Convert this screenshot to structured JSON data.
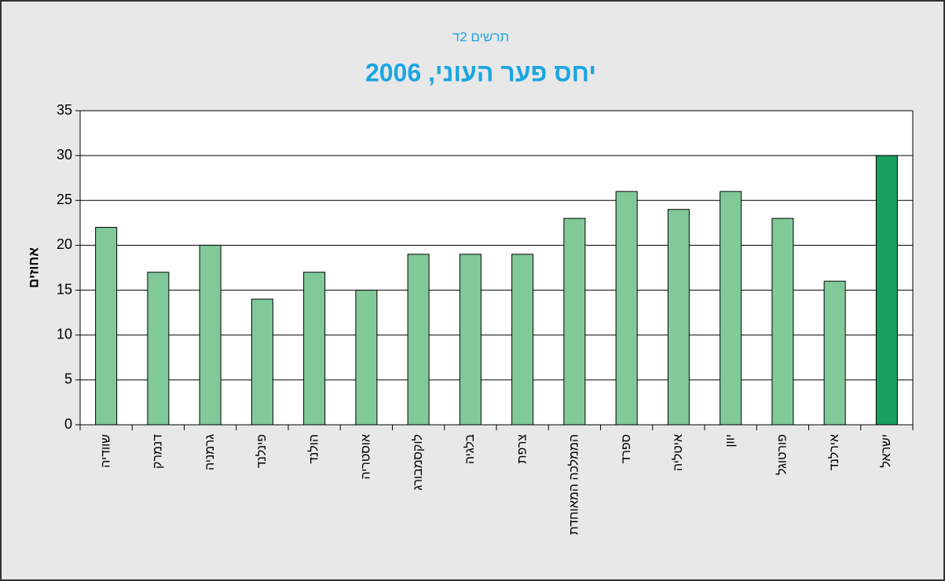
{
  "chart_data": {
    "type": "bar",
    "subtitle": "תרשים 2ד",
    "title": "יחס פער העוני, 2006",
    "y_label": "אחוזים",
    "categories": [
      "שוודיה",
      "דנמרק",
      "גרמניה",
      "פינלנד",
      "הולנד",
      "אוסטריה",
      "לוקסמבורג",
      "בלגיה",
      "צרפת",
      "הממלכה המאוחדת",
      "ספרד",
      "איטליה",
      "יוון",
      "פורטוגל",
      "אירלנד",
      "ישראל"
    ],
    "values": [
      22,
      17,
      20,
      14,
      17,
      15,
      19,
      19,
      19,
      23,
      26,
      24,
      26,
      23,
      16,
      30
    ],
    "colors": [
      "#82c99a",
      "#82c99a",
      "#82c99a",
      "#82c99a",
      "#82c99a",
      "#82c99a",
      "#82c99a",
      "#82c99a",
      "#82c99a",
      "#82c99a",
      "#82c99a",
      "#82c99a",
      "#82c99a",
      "#82c99a",
      "#82c99a",
      "#1aa05e"
    ],
    "ylim": [
      0,
      35
    ],
    "yticks": [
      0,
      5,
      10,
      15,
      20,
      25,
      30,
      35
    ],
    "grid": true
  }
}
